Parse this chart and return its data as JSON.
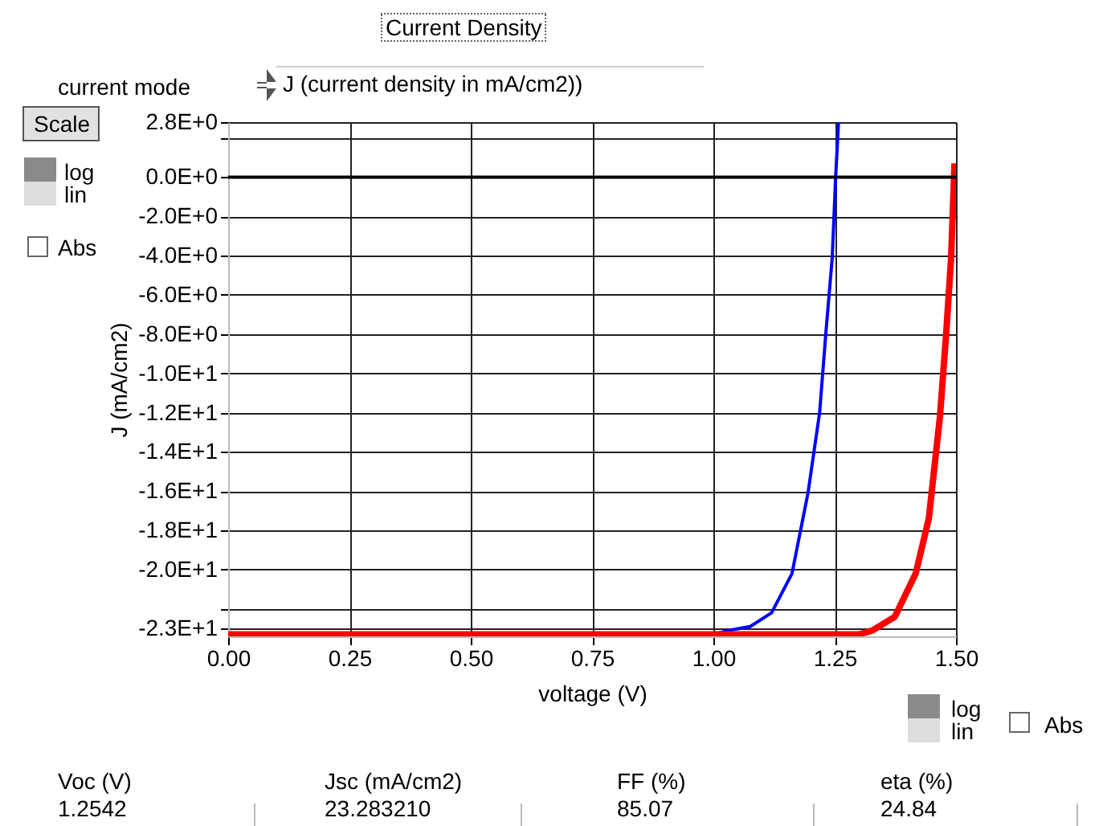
{
  "chart_data": {
    "type": "line",
    "title": "Current Density",
    "xlabel": "voltage (V)",
    "ylabel": "J (mA/cm2)",
    "annotations": [
      "current mode",
      "J (current density in mA/cm2))",
      "Scale",
      "log",
      "lin",
      "Abs",
      "log",
      "lin",
      "Abs",
      "Voc (V)",
      "1.2542",
      "Jsc (mA/cm2)",
      "23.283210",
      "FF  (%)",
      "85.07",
      "eta (%)",
      "24.84"
    ],
    "series": [
      {
        "color": "#0000ff",
        "x": [
          0,
          0.5,
          1.0,
          1.03,
          1.076,
          1.12,
          1.162,
          1.195,
          1.219,
          1.232,
          1.245,
          1.252,
          1.258
        ],
        "values": [
          -23.3,
          -23.3,
          -23.3,
          -23.1,
          -22.9,
          -22.2,
          -20.2,
          -16.1,
          -12.0,
          -7.9,
          -4.1,
          0,
          2.8
        ]
      },
      {
        "color": "#ff0000",
        "x": [
          0,
          0.5,
          1.0,
          1.3,
          1.328,
          1.374,
          1.417,
          1.444,
          1.467,
          1.48,
          1.49,
          1.497
        ],
        "values": [
          -23.3,
          -23.3,
          -23.3,
          -23.3,
          -23.1,
          -22.4,
          -20.2,
          -17.4,
          -12.2,
          -7.9,
          -4.1,
          0.7
        ]
      }
    ],
    "xlim": [
      0,
      1.5
    ],
    "ylim": [
      -23.4,
      2.8
    ],
    "xticks": [
      {
        "value": 0,
        "label": "0.00"
      },
      {
        "value": 0.25,
        "label": "0.25"
      },
      {
        "value": 0.5,
        "label": "0.50"
      },
      {
        "value": 0.75,
        "label": "0.75"
      },
      {
        "value": 1,
        "label": "1.00"
      },
      {
        "value": 1.25,
        "label": "1.25"
      },
      {
        "value": 1.5,
        "label": "1.50"
      }
    ],
    "yticks": [
      {
        "value": 2.8,
        "label": "2.8E+0"
      },
      {
        "value": 2,
        "label": null
      },
      {
        "value": 0,
        "label": "0.0E+0"
      },
      {
        "value": -2,
        "label": "-2.0E+0"
      },
      {
        "value": -4,
        "label": "-4.0E+0"
      },
      {
        "value": -6,
        "label": "-6.0E+0"
      },
      {
        "value": -8,
        "label": "-8.0E+0"
      },
      {
        "value": -10,
        "label": "-1.0E+1"
      },
      {
        "value": -12,
        "label": "-1.2E+1"
      },
      {
        "value": -14,
        "label": "-1.4E+1"
      },
      {
        "value": -16,
        "label": "-1.6E+1"
      },
      {
        "value": -18,
        "label": "-1.8E+1"
      },
      {
        "value": -20,
        "label": "-2.0E+1"
      },
      {
        "value": -22,
        "label": null
      },
      {
        "value": -23,
        "label": "-2.3E+1"
      }
    ],
    "ref_lines": [
      {
        "axis": "y",
        "value": 0,
        "color": "#000000"
      }
    ],
    "grid": true
  }
}
